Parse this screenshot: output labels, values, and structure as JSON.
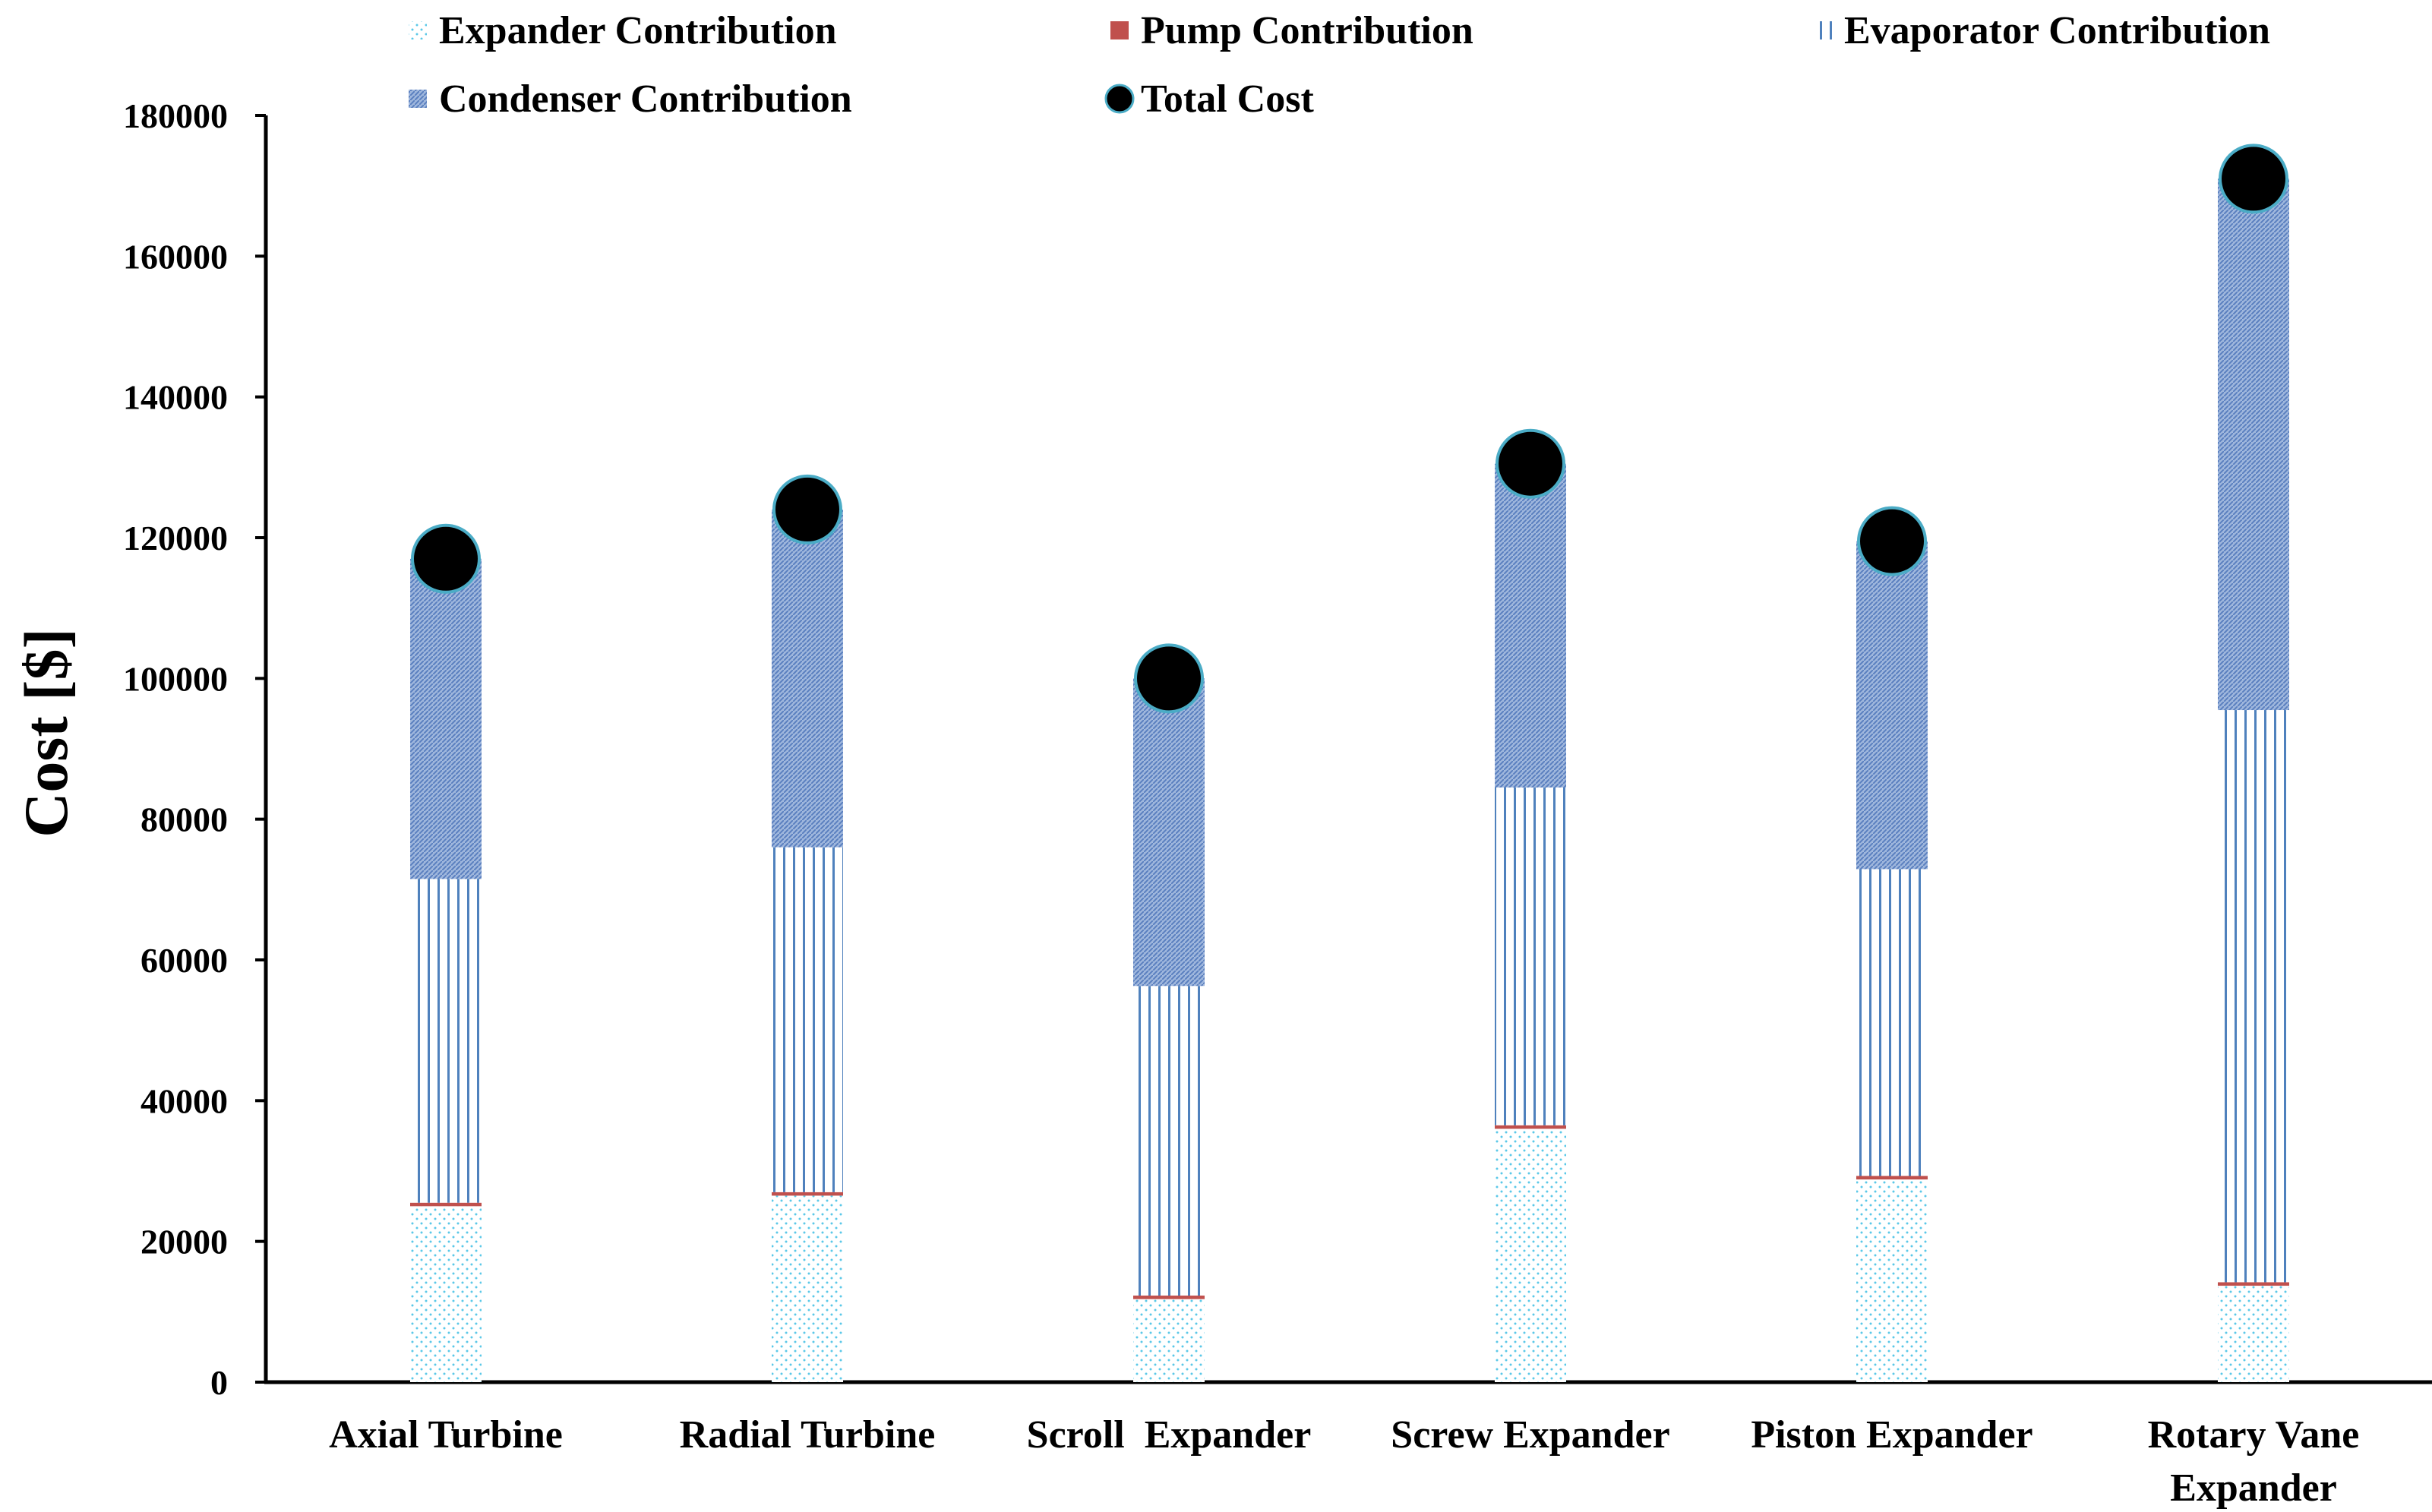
{
  "chart_data": {
    "type": "bar",
    "stacked": true,
    "title": "",
    "xlabel": "",
    "ylabel": "Cost [$]",
    "ylim": [
      0,
      180000
    ],
    "ytick_step": 20000,
    "yticks": [
      "0",
      "20000",
      "40000",
      "60000",
      "80000",
      "100000",
      "120000",
      "140000",
      "160000",
      "180000"
    ],
    "grid": false,
    "legend_position": "top",
    "categories": [
      [
        "Axial Turbine"
      ],
      [
        "Radial Turbine"
      ],
      [
        "Scroll  Expander"
      ],
      [
        "Screw Expander"
      ],
      [
        "Piston Expander"
      ],
      [
        "Rotary Vane",
        "Expander"
      ]
    ],
    "series": [
      {
        "name": "Expander Contribution",
        "kind": "bar",
        "pattern": "expander",
        "color": "#5bc8e8",
        "values": [
          25000,
          26500,
          11800,
          36000,
          28800,
          13700
        ]
      },
      {
        "name": "Pump Contribution",
        "kind": "bar",
        "pattern": "pump",
        "color": "#c0504d",
        "values": [
          500,
          500,
          500,
          500,
          500,
          500
        ]
      },
      {
        "name": "Evaporator Contribution",
        "kind": "bar",
        "pattern": "evaporator",
        "color": "#4f81bd",
        "values": [
          46000,
          49000,
          44000,
          48000,
          43600,
          81300
        ]
      },
      {
        "name": "Condenser Contribution",
        "kind": "bar",
        "pattern": "condenser",
        "color": "#7f9fd1",
        "values": [
          45500,
          48000,
          43700,
          46000,
          46600,
          75500
        ]
      },
      {
        "name": "Total Cost",
        "kind": "marker",
        "color": "#000000",
        "edge_color": "#4bacc6",
        "values": [
          117000,
          124000,
          100000,
          130500,
          119500,
          171000
        ]
      }
    ]
  }
}
